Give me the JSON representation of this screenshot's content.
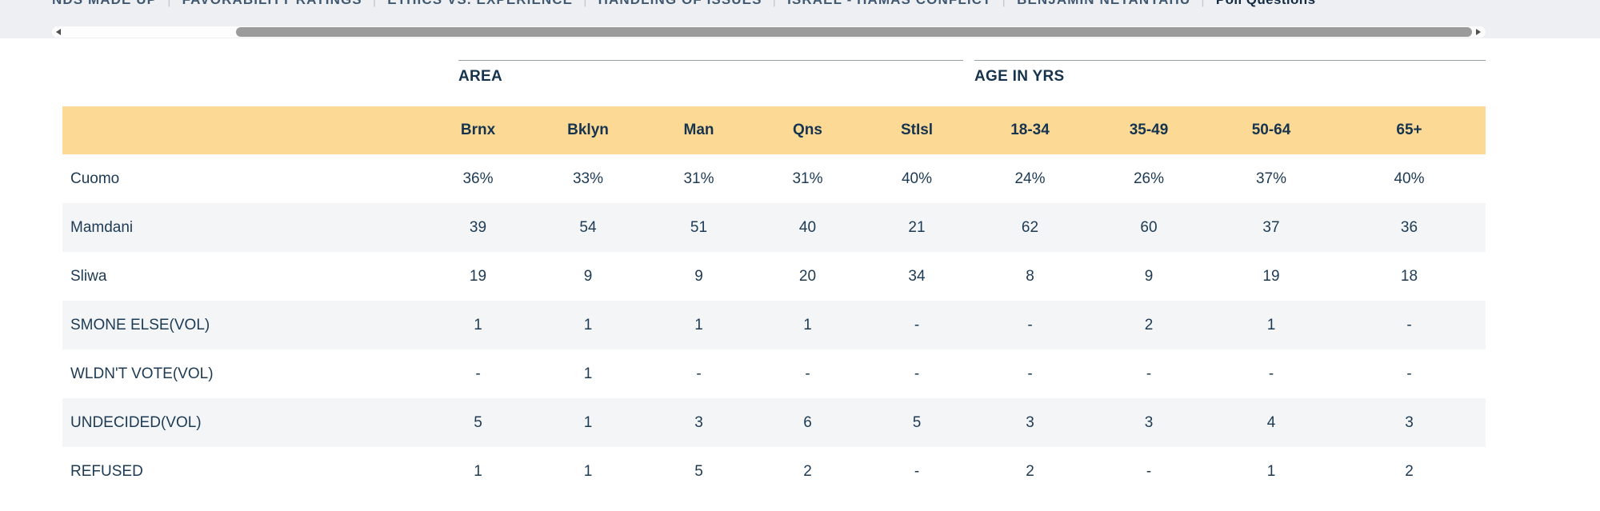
{
  "nav": {
    "separator": "|",
    "tabs": [
      {
        "label": "NDS MADE UP",
        "active": false
      },
      {
        "label": "FAVORABILITY RATINGS",
        "active": false
      },
      {
        "label": "ETHICS VS. EXPERIENCE",
        "active": false
      },
      {
        "label": "HANDLING OF ISSUES",
        "active": false
      },
      {
        "label": "ISRAEL - HAMAS CONFLICT",
        "active": false
      },
      {
        "label": "BENJAMIN NETANYAHU",
        "active": false
      },
      {
        "label": "Poll Questions",
        "active": true
      }
    ]
  },
  "scrollbar": {
    "orientation": "horizontal",
    "left_arrow_icon": "left-triangle",
    "right_arrow_icon": "right-triangle"
  },
  "table": {
    "groups": [
      {
        "label": "AREA",
        "span": 5
      },
      {
        "label": "AGE IN YRS",
        "span": 4
      }
    ],
    "columns": [
      "Brnx",
      "Bklyn",
      "Man",
      "Qns",
      "StIsl",
      "18-34",
      "35-49",
      "50-64",
      "65+"
    ],
    "rows": [
      {
        "label": "Cuomo",
        "values": [
          "36%",
          "33%",
          "31%",
          "31%",
          "40%",
          "24%",
          "26%",
          "37%",
          "40%"
        ]
      },
      {
        "label": "Mamdani",
        "values": [
          "39",
          "54",
          "51",
          "40",
          "21",
          "62",
          "60",
          "37",
          "36"
        ]
      },
      {
        "label": "Sliwa",
        "values": [
          "19",
          "9",
          "9",
          "20",
          "34",
          "8",
          "9",
          "19",
          "18"
        ]
      },
      {
        "label": "SMONE ELSE(VOL)",
        "values": [
          "1",
          "1",
          "1",
          "1",
          "-",
          "-",
          "2",
          "1",
          "-"
        ]
      },
      {
        "label": "WLDN'T VOTE(VOL)",
        "values": [
          "-",
          "1",
          "-",
          "-",
          "-",
          "-",
          "-",
          "-",
          "-"
        ]
      },
      {
        "label": "UNDECIDED(VOL)",
        "values": [
          "5",
          "1",
          "3",
          "6",
          "5",
          "3",
          "3",
          "4",
          "3"
        ]
      },
      {
        "label": "REFUSED",
        "values": [
          "1",
          "1",
          "5",
          "2",
          "-",
          "2",
          "-",
          "1",
          "2"
        ]
      }
    ]
  },
  "colors": {
    "band_background": "#edeff3",
    "header_highlight": "#fcd994",
    "row_stripe": "#f3f5f7",
    "text": "#1d3a54",
    "nav_text": "#415970",
    "nav_active_text": "#132c44",
    "scroll_thumb": "#9b9b9b"
  }
}
